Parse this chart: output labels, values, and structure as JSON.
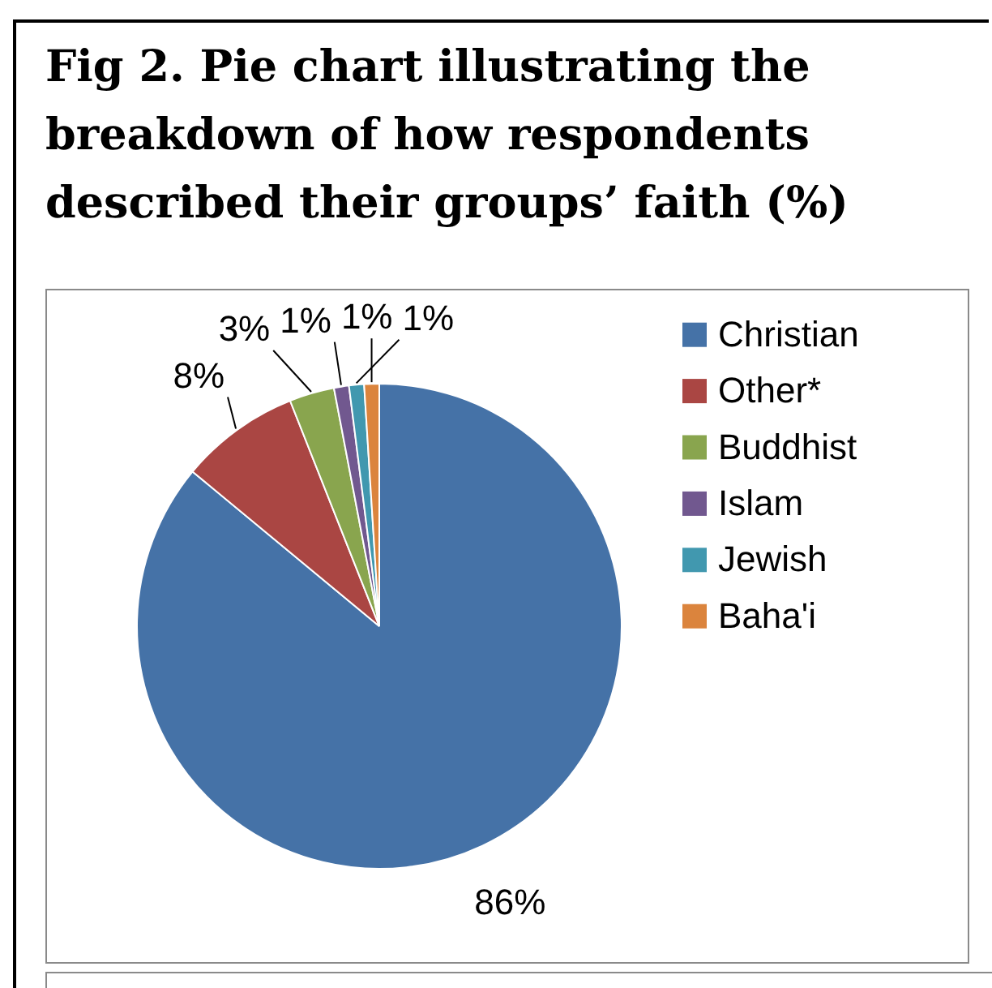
{
  "chart_data": {
    "type": "pie",
    "title": "Fig 2. Pie chart illustrating the breakdown of how respondents described their groups’ faith (%)",
    "categories": [
      "Christian",
      "Other*",
      "Buddhist",
      "Islam",
      "Jewish",
      "Baha'i"
    ],
    "values": [
      86,
      8,
      3,
      1,
      1,
      1
    ],
    "colors": [
      "#4572a7",
      "#aa4643",
      "#89a54e",
      "#71588f",
      "#4198af",
      "#db843d"
    ],
    "value_labels": [
      "86%",
      "8%",
      "3%",
      "1%",
      "1%",
      "1%"
    ],
    "legend": "right"
  }
}
